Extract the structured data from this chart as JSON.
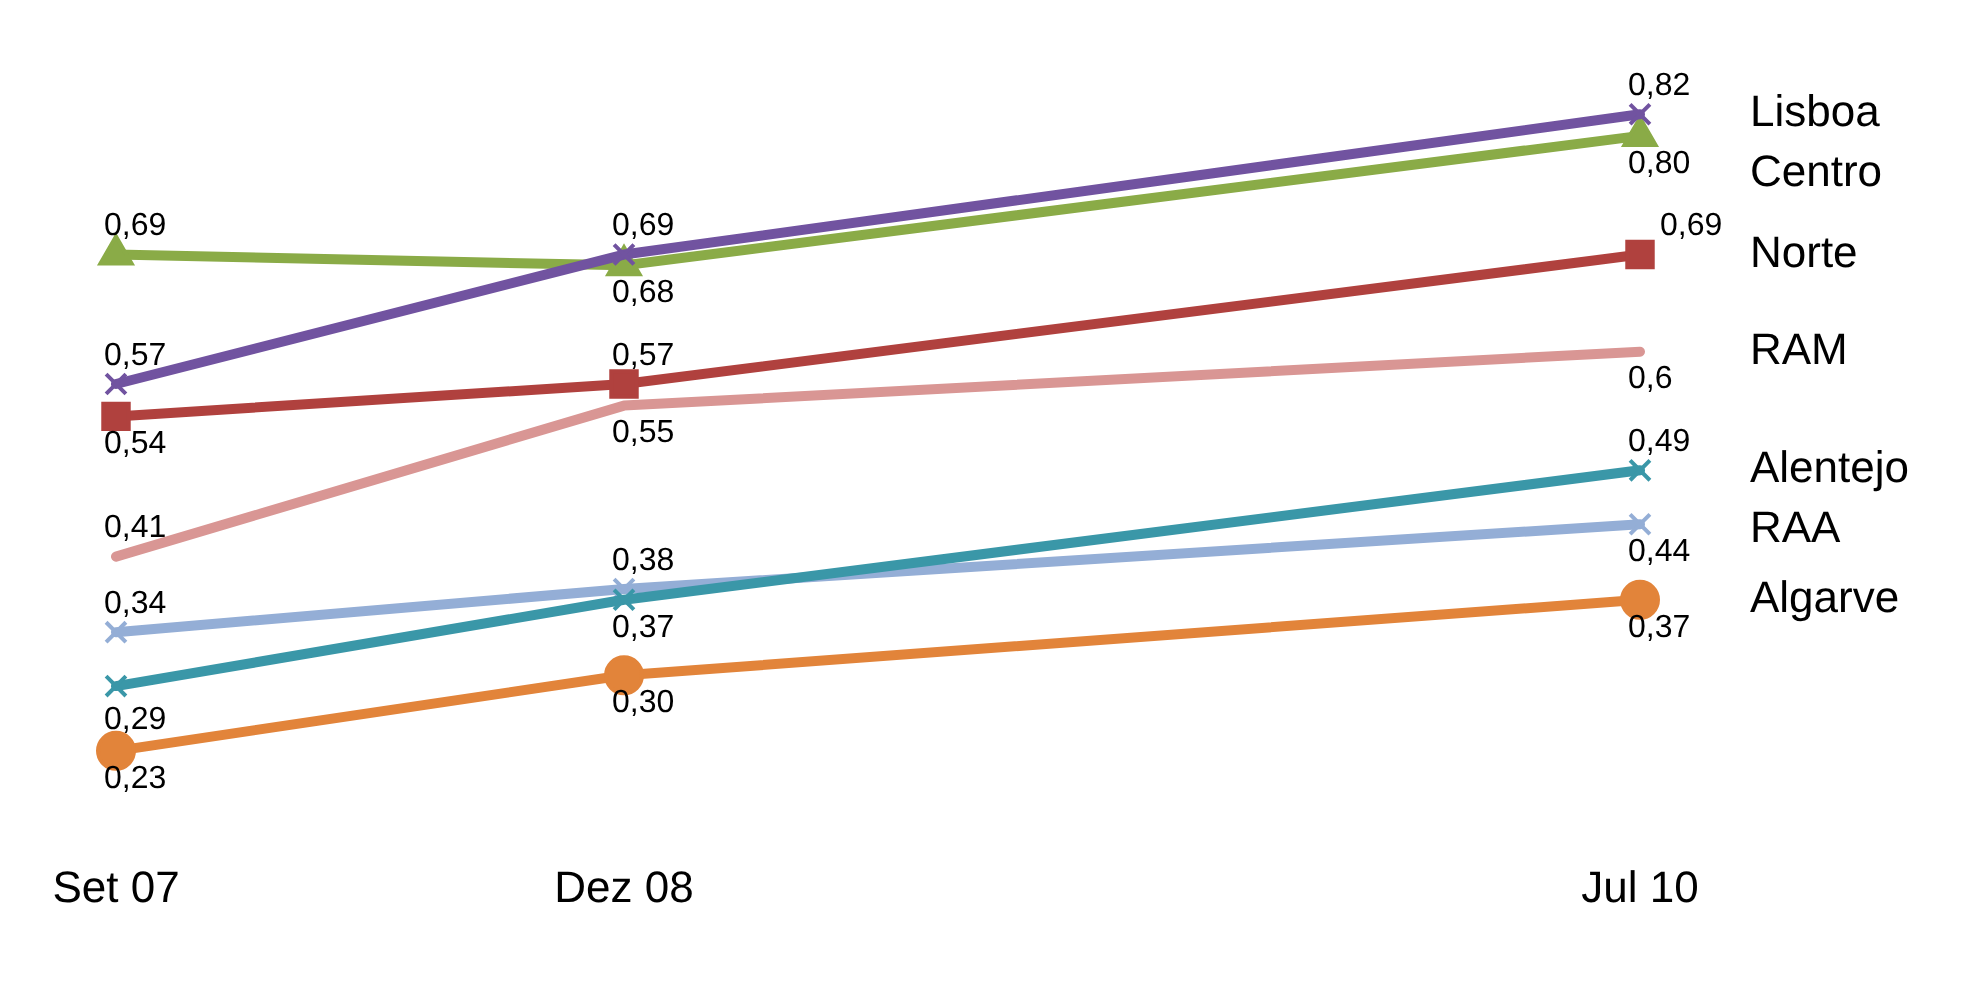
{
  "chart_data": {
    "type": "line",
    "categories": [
      "Set 07",
      "Dez 08",
      null,
      "Jul 10"
    ],
    "tick_labels": "x",
    "grid": false,
    "legend": false,
    "series": [
      {
        "name": "Lisboa",
        "color": "#7153a0",
        "marker": "cross",
        "values": [
          0.57,
          0.69,
          null,
          0.82
        ],
        "value_labels": [
          "0,57",
          "0,69",
          null,
          "0,82"
        ]
      },
      {
        "name": "Centro",
        "color": "#8aab47",
        "marker": "triangle",
        "values": [
          0.69,
          0.68,
          null,
          0.8
        ],
        "value_labels": [
          "0,69",
          "0,68",
          null,
          "0,80"
        ]
      },
      {
        "name": "Norte",
        "color": "#b0413e",
        "marker": "square",
        "values": [
          0.54,
          0.57,
          null,
          0.69
        ],
        "value_labels": [
          "0,54",
          "0,57",
          null,
          "0,69"
        ]
      },
      {
        "name": "RAM",
        "color": "#d99694",
        "marker": "none",
        "values": [
          0.41,
          0.55,
          null,
          0.6
        ],
        "value_labels": [
          "0,41",
          "0,55",
          null,
          "0,6"
        ]
      },
      {
        "name": "Alentejo",
        "color": "#3a97a8",
        "marker": "cross",
        "values": [
          0.29,
          0.37,
          null,
          0.49
        ],
        "value_labels": [
          "0,29",
          "0,37",
          null,
          "0,49"
        ]
      },
      {
        "name": "RAA",
        "color": "#94aed6",
        "marker": "cross",
        "values": [
          0.34,
          0.38,
          null,
          0.44
        ],
        "value_labels": [
          "0,34",
          "0,38",
          null,
          "0,44"
        ]
      },
      {
        "name": "Algarve",
        "color": "#e2843a",
        "marker": "circle",
        "values": [
          0.23,
          0.3,
          null,
          0.37
        ],
        "value_labels": [
          "0,23",
          "0,30",
          null,
          "0,37"
        ]
      }
    ]
  }
}
